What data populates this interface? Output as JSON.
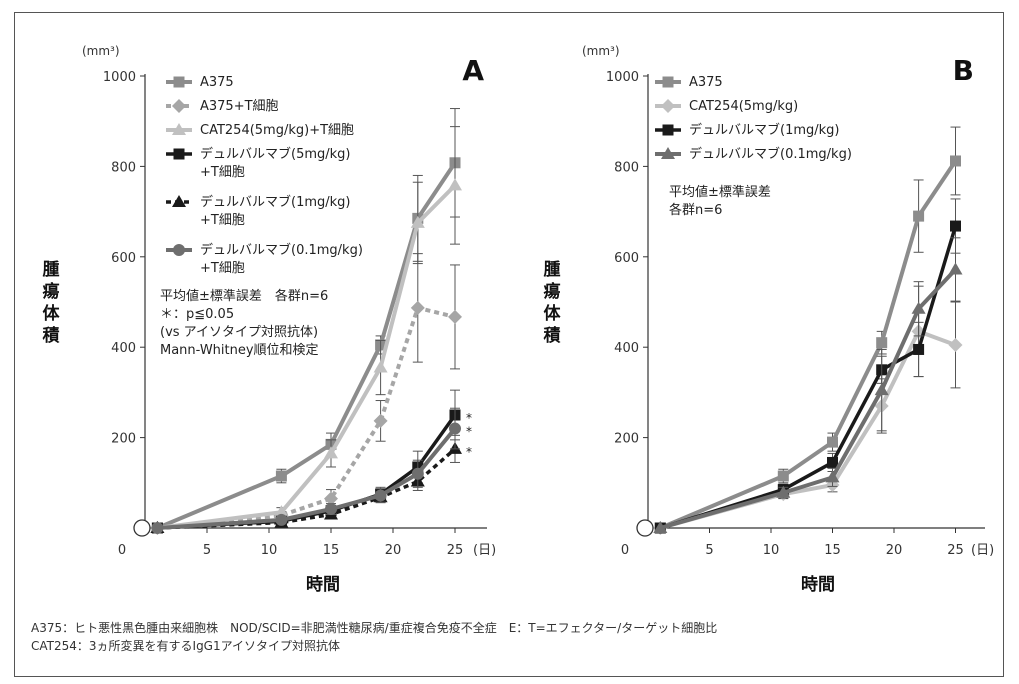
{
  "chart_data": [
    {
      "type": "line",
      "panel": "A",
      "unit": "(mm³)",
      "ylabel": "腫瘍体積",
      "xlabel": "時間",
      "x_unit": "(日)",
      "x_ticks": [
        "0",
        "5",
        "10",
        "15",
        "20",
        "25"
      ],
      "y_ticks": [
        "200",
        "400",
        "600",
        "800",
        "1000"
      ],
      "xlim": [
        0,
        27.5
      ],
      "ylim": [
        0,
        1000
      ],
      "x": [
        1,
        11,
        15,
        19,
        22,
        25
      ],
      "series": [
        {
          "name": "A375",
          "color": "#8c8c8c",
          "marker": "square",
          "dash": false,
          "width": 4,
          "values": [
            0,
            115,
            185,
            405,
            685,
            808
          ],
          "errors": [
            5,
            15,
            25,
            20,
            95,
            120
          ]
        },
        {
          "name": "A375+T細胞",
          "color": "#a6a6a6",
          "marker": "diamond",
          "dash": true,
          "width": 4,
          "values": [
            0,
            28,
            65,
            237,
            487,
            467
          ],
          "errors": [
            3,
            8,
            20,
            45,
            120,
            115
          ]
        },
        {
          "name": "CAT254(5mg/kg)+T細胞",
          "color": "#c0c0c0",
          "marker": "triangle",
          "dash": false,
          "width": 4,
          "values": [
            0,
            35,
            165,
            355,
            675,
            758
          ],
          "errors": [
            4,
            10,
            30,
            60,
            90,
            130
          ]
        },
        {
          "name": "デュルバルマブ(5mg/kg)\n+T細胞",
          "color": "#1a1a1a",
          "marker": "square",
          "dash": false,
          "width": 3.5,
          "values": [
            0,
            15,
            38,
            75,
            135,
            250
          ],
          "errors": [
            3,
            6,
            12,
            15,
            35,
            55
          ]
        },
        {
          "name": "デュルバルマブ(1mg/kg)\n+T細胞",
          "color": "#1a1a1a",
          "marker": "triangle",
          "dash": true,
          "width": 3.5,
          "values": [
            0,
            12,
            30,
            68,
            103,
            175
          ],
          "errors": [
            3,
            5,
            10,
            12,
            20,
            30
          ]
        },
        {
          "name": "デュルバルマブ(0.1mg/kg)\n+T細胞",
          "color": "#6e6e6e",
          "marker": "circle",
          "dash": false,
          "width": 4,
          "values": [
            0,
            18,
            42,
            72,
            120,
            220
          ],
          "errors": [
            3,
            6,
            12,
            15,
            30,
            45
          ]
        }
      ],
      "stars": [
        "*",
        "*",
        "*"
      ],
      "notes": [
        "平均値±標準誤差　各群n=6",
        "＊：p≦0.05",
        "(vs アイソタイプ対照抗体)",
        "Mann-Whitney順位和検定"
      ]
    },
    {
      "type": "line",
      "panel": "B",
      "unit": "(mm³)",
      "ylabel": "腫瘍体積",
      "xlabel": "時間",
      "x_unit": "(日)",
      "x_ticks": [
        "0",
        "5",
        "10",
        "15",
        "20",
        "25"
      ],
      "y_ticks": [
        "200",
        "400",
        "600",
        "800",
        "1000"
      ],
      "xlim": [
        0,
        27.5
      ],
      "ylim": [
        0,
        1000
      ],
      "x": [
        1,
        11,
        15,
        19,
        22,
        25
      ],
      "series": [
        {
          "name": "A375",
          "color": "#8c8c8c",
          "marker": "square",
          "dash": false,
          "width": 4,
          "values": [
            0,
            115,
            190,
            410,
            690,
            812
          ],
          "errors": [
            5,
            15,
            20,
            25,
            80,
            75
          ]
        },
        {
          "name": "CAT254(5mg/kg)",
          "color": "#c0c0c0",
          "marker": "diamond",
          "dash": false,
          "width": 4,
          "values": [
            0,
            75,
            95,
            270,
            435,
            405
          ],
          "errors": [
            4,
            10,
            15,
            60,
            100,
            95
          ]
        },
        {
          "name": "デュルバルマブ(1mg/kg)",
          "color": "#1a1a1a",
          "marker": "square",
          "dash": false,
          "width": 3.5,
          "values": [
            0,
            85,
            145,
            350,
            395,
            668
          ],
          "errors": [
            4,
            12,
            20,
            30,
            60,
            60
          ]
        },
        {
          "name": "デュルバルマブ(0.1mg/kg)",
          "color": "#6e6e6e",
          "marker": "triangle",
          "dash": false,
          "width": 4,
          "values": [
            0,
            78,
            112,
            305,
            485,
            572
          ],
          "errors": [
            4,
            12,
            20,
            90,
            60,
            70
          ]
        }
      ],
      "notes": [
        "平均値±標準誤差",
        "各群n=6"
      ]
    }
  ],
  "footnotes": [
    "A375：ヒト悪性黒色腫由来細胞株　NOD/SCID=非肥満性糖尿病/重症複合免疫不全症　E：T=エフェクター/ターゲット細胞比",
    "CAT254：3ヵ所変異を有するIgG1アイソタイプ対照抗体"
  ]
}
